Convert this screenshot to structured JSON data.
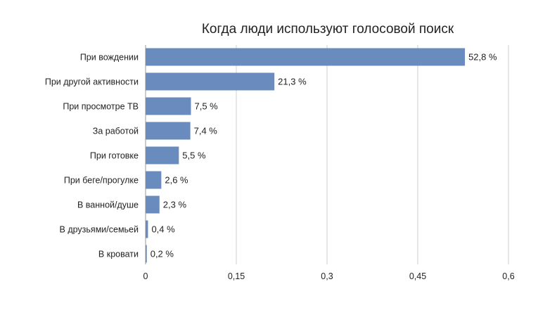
{
  "chart_data": {
    "type": "bar",
    "orientation": "horizontal",
    "title": "Когда люди используют голосовой поиск",
    "categories": [
      "При вождении",
      "При другой активности",
      "При просмотре ТВ",
      "За работой",
      "При готовке",
      "При беге/прогулке",
      "В ванной/душе",
      "В друзьями/семьей",
      "В кровати"
    ],
    "values": [
      0.528,
      0.213,
      0.075,
      0.074,
      0.055,
      0.026,
      0.023,
      0.004,
      0.002
    ],
    "value_labels": [
      "52,8 %",
      "21,3 %",
      "7,5 %",
      "7,4 %",
      "5,5 %",
      "2,6 %",
      "2,3 %",
      "0,4 %",
      "0,2 %"
    ],
    "xlim": [
      0,
      0.6
    ],
    "x_ticks": [
      0,
      0.15,
      0.3,
      0.45,
      0.6
    ],
    "x_tick_labels": [
      "0",
      "0,15",
      "0,3",
      "0,45",
      "0,6"
    ],
    "grid": true,
    "bar_color": "#6a8bbd"
  }
}
